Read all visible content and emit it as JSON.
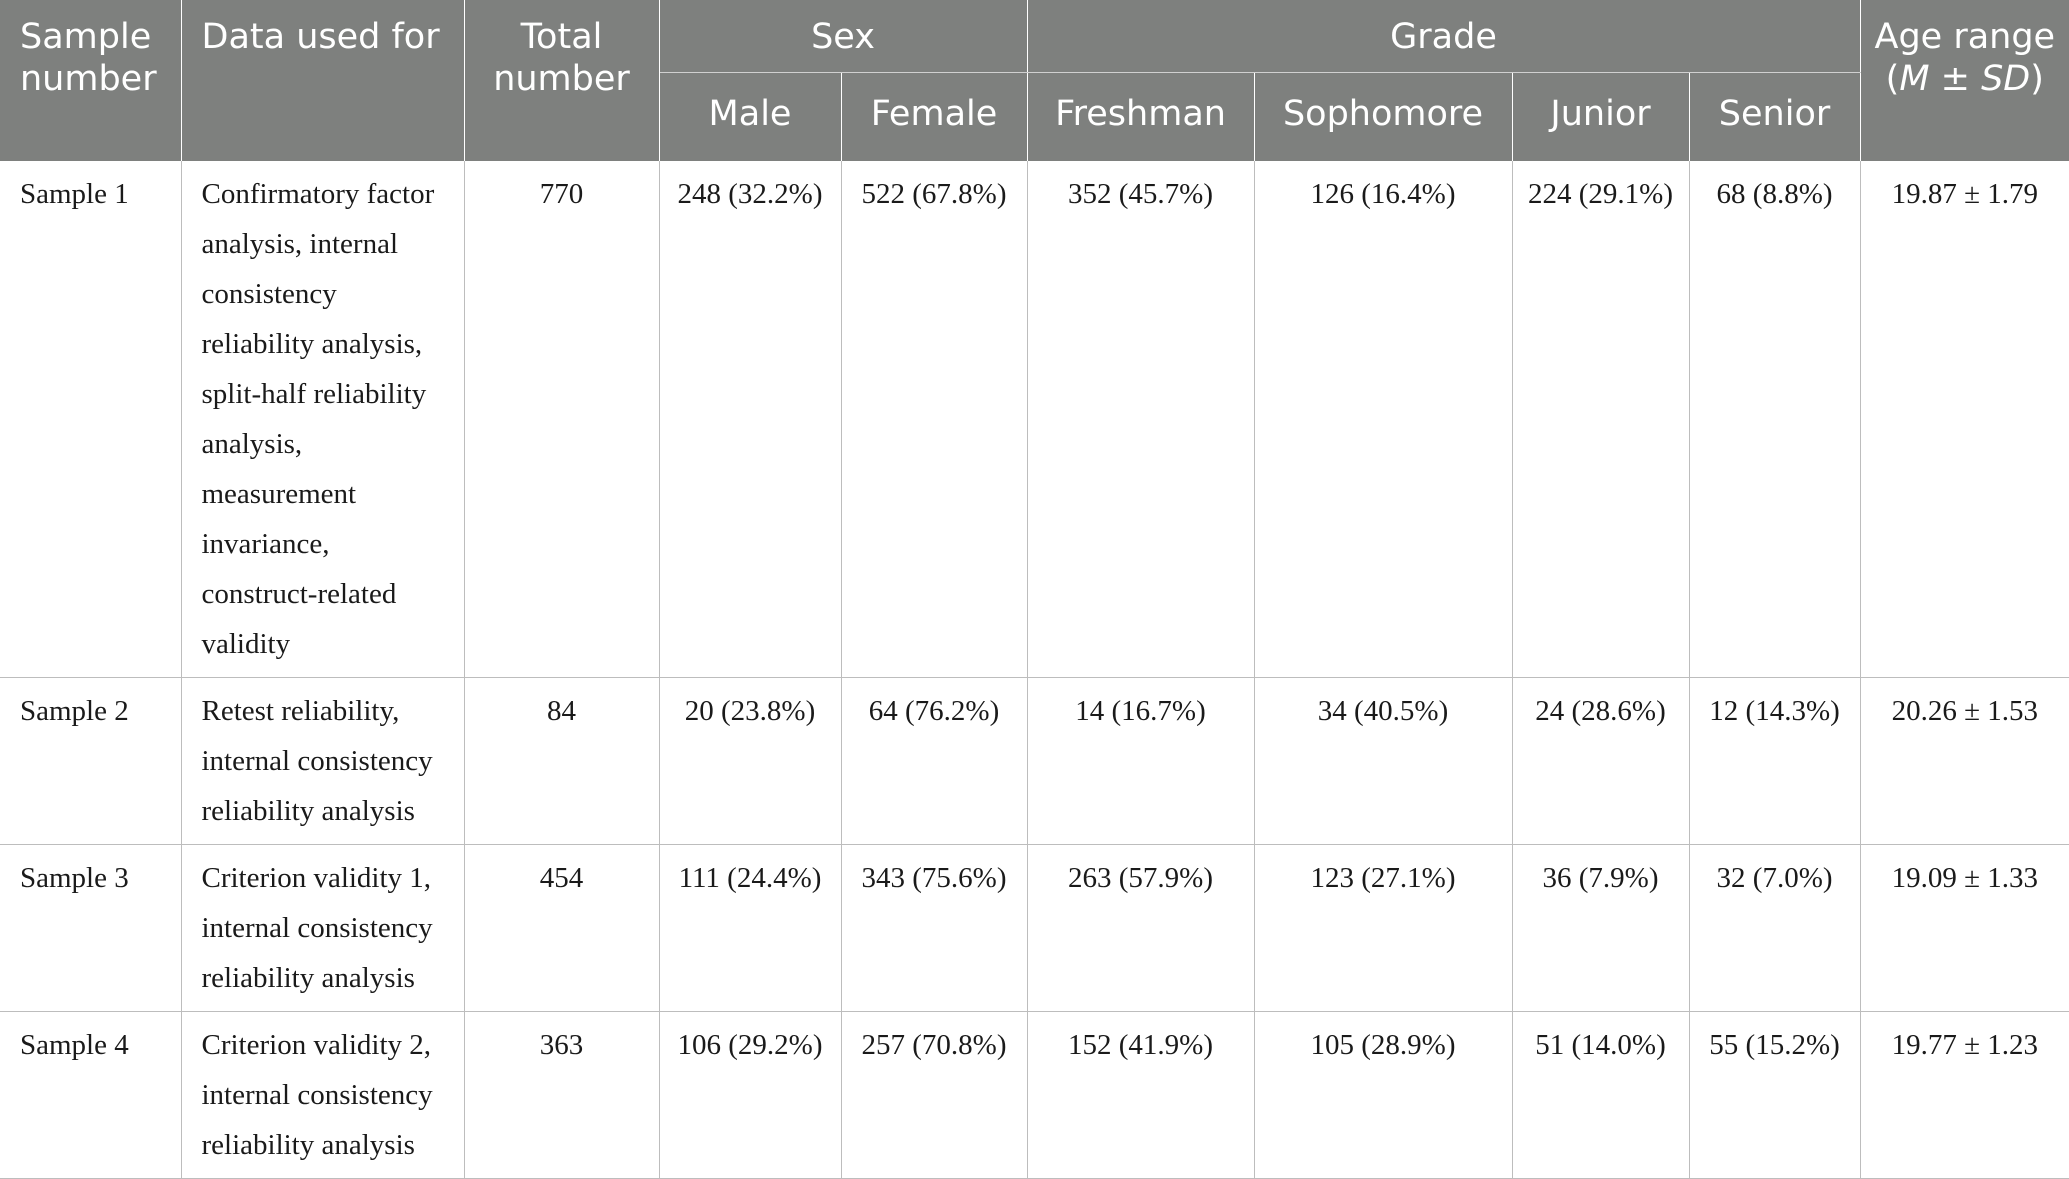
{
  "header": {
    "sample_number": "Sample number",
    "data_used_for": "Data used for",
    "total_number": "Total number",
    "sex": "Sex",
    "grade": "Grade",
    "age_range_line1": "Age range",
    "age_range_paren_open": "(",
    "age_M": "M",
    "age_pm": " ± ",
    "age_SD": "SD",
    "age_range_paren_close": ")",
    "male": "Male",
    "female": "Female",
    "freshman": "Freshman",
    "sophomore": "Sophomore",
    "junior": "Junior",
    "senior": "Senior"
  },
  "rows": [
    {
      "sample": "Sample 1",
      "data_used_for": "Confirmatory factor analysis, internal consistency reliability analysis, split-half reliability analysis, measurement invariance, construct-related validity",
      "total": "770",
      "male": "248 (32.2%)",
      "female": "522 (67.8%)",
      "freshman": "352 (45.7%)",
      "sophomore": "126 (16.4%)",
      "junior": "224 (29.1%)",
      "senior": "68 (8.8%)",
      "age": "19.87 ± 1.79"
    },
    {
      "sample": "Sample 2",
      "data_used_for": "Retest reliability, internal consistency reliability analysis",
      "total": "84",
      "male": "20 (23.8%)",
      "female": "64 (76.2%)",
      "freshman": "14 (16.7%)",
      "sophomore": "34 (40.5%)",
      "junior": "24 (28.6%)",
      "senior": "12 (14.3%)",
      "age": "20.26 ± 1.53"
    },
    {
      "sample": "Sample 3",
      "data_used_for": "Criterion validity 1, internal consistency reliability analysis",
      "total": "454",
      "male": "111 (24.4%)",
      "female": "343 (75.6%)",
      "freshman": "263 (57.9%)",
      "sophomore": "123 (27.1%)",
      "junior": "36 (7.9%)",
      "senior": "32 (7.0%)",
      "age": "19.09 ± 1.33"
    },
    {
      "sample": "Sample 4",
      "data_used_for": "Criterion validity 2, internal consistency reliability analysis",
      "total": "363",
      "male": "106 (29.2%)",
      "female": "257 (70.8%)",
      "freshman": "152 (41.9%)",
      "sophomore": "105 (28.9%)",
      "junior": "51 (14.0%)",
      "senior": "55 (15.2%)",
      "age": "19.77 ± 1.23"
    }
  ]
}
